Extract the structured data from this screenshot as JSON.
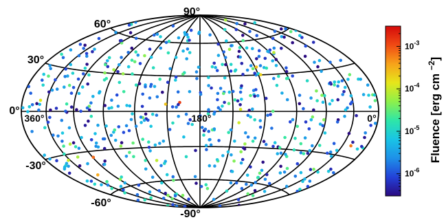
{
  "chart_data": {
    "type": "scatter",
    "projection": "hammer-aitoff",
    "title": "",
    "longitude_labels": [
      "360°",
      "180°",
      "0°"
    ],
    "latitude_labels": [
      "90°",
      "60°",
      "30°",
      "0°",
      "-30°",
      "-60°",
      "-90°"
    ],
    "colorbar": {
      "label": "Fluence [erg cm",
      "label_sup": "−2",
      "label_close": "]",
      "scale": "log",
      "range": [
        3e-07,
        0.003
      ],
      "ticks": [
        {
          "value": 0.001,
          "base": "10",
          "exp": "-3"
        },
        {
          "value": 0.0001,
          "base": "10",
          "exp": "-4"
        },
        {
          "value": 1e-05,
          "base": "10",
          "exp": "-5"
        },
        {
          "value": 1e-06,
          "base": "10",
          "exp": "-6"
        }
      ],
      "colormap": [
        "#2a0a80",
        "#2341d8",
        "#1e90e8",
        "#19c4e6",
        "#2ee6a8",
        "#8ef04a",
        "#e6e61a",
        "#f7a21a",
        "#f04a14",
        "#d40a0a"
      ]
    },
    "points": {
      "count": 620,
      "distribution": "approximately isotropic over the sky",
      "fluence_range": [
        3e-07,
        0.003
      ]
    },
    "grid": true
  }
}
